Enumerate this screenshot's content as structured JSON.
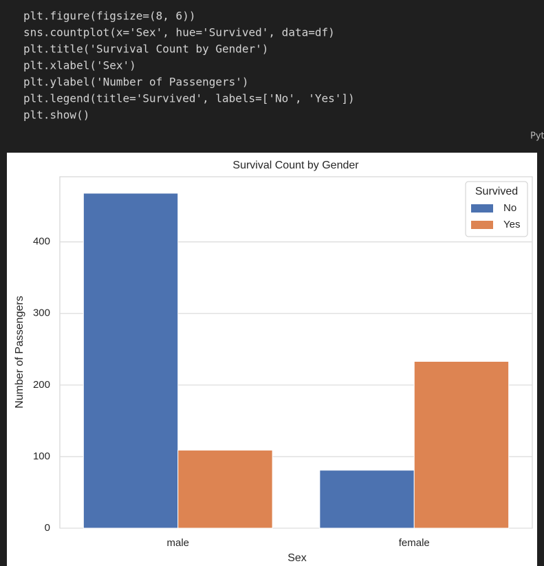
{
  "code": {
    "lines": [
      "plt.figure(figsize=(8, 6))",
      "sns.countplot(x='Sex', hue='Survived', data=df)",
      "plt.title('Survival Count by Gender')",
      "plt.xlabel('Sex')",
      "plt.ylabel('Number of Passengers')",
      "plt.legend(title='Survived', labels=['No', 'Yes'])",
      "plt.show()"
    ],
    "language_label": "Pyt"
  },
  "chart_data": {
    "type": "bar",
    "title": "Survival Count by Gender",
    "x_label": "Sex",
    "y_label": "Number of Passengers",
    "categories": [
      "male",
      "female"
    ],
    "series": [
      {
        "name": "No",
        "color": "#4c72b0",
        "values": [
          468,
          81
        ]
      },
      {
        "name": "Yes",
        "color": "#dd8452",
        "values": [
          109,
          233
        ]
      }
    ],
    "legend_title": "Survived",
    "legend": "upper right",
    "ylim": [
      0,
      491
    ],
    "yticks": [
      0,
      100,
      200,
      300,
      400
    ],
    "grid": true
  }
}
